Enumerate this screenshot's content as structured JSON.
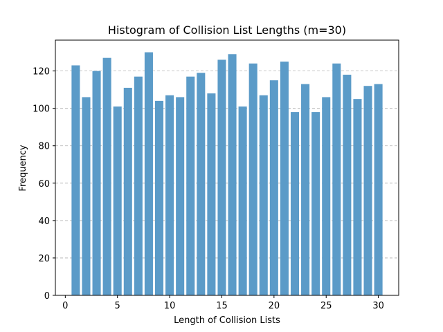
{
  "chart_data": {
    "type": "bar",
    "title": "Histogram of Collision List Lengths (m=30)",
    "xlabel": "Length of Collision Lists",
    "ylabel": "Frequency",
    "x": [
      1,
      2,
      3,
      4,
      5,
      6,
      7,
      8,
      9,
      10,
      11,
      12,
      13,
      14,
      15,
      16,
      17,
      18,
      19,
      20,
      21,
      22,
      23,
      24,
      25,
      26,
      27,
      28,
      29,
      30
    ],
    "values": [
      123,
      106,
      120,
      127,
      101,
      111,
      117,
      130,
      104,
      107,
      106,
      117,
      119,
      108,
      126,
      129,
      101,
      124,
      107,
      115,
      125,
      98,
      113,
      98,
      106,
      124,
      118,
      105,
      112,
      113
    ],
    "xlim": [
      -0.95,
      31.95
    ],
    "ylim": [
      0,
      136.5
    ],
    "xticks": [
      0,
      5,
      10,
      15,
      20,
      25,
      30
    ],
    "yticks": [
      0,
      20,
      40,
      60,
      80,
      100,
      120
    ],
    "grid": "y-dashed",
    "bar_color": "#5b9bc8",
    "legend": "none"
  }
}
